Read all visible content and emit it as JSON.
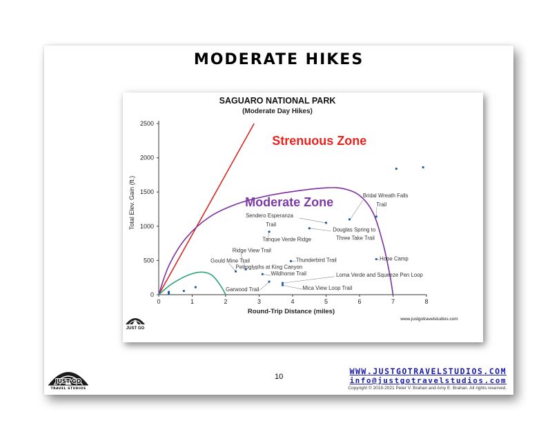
{
  "slide": {
    "title": "MODERATE HIKES",
    "page_number": "10"
  },
  "footer": {
    "website": "WWW.JUSTGOTRAVELSTUDIOS.COM",
    "email": "info@justgotravelstudios.com",
    "copyright": "Copyright © 2019-2021 Peter V. Brahan and Amy E. Brahan. All rights reserved.",
    "logo_text": "JUST GO",
    "logo_subtext": "TRAVEL STUDIOS"
  },
  "chart_data": {
    "type": "scatter",
    "title": "SAGUARO NATIONAL PARK",
    "subtitle": "(Moderate Day Hikes)",
    "xlabel": "Round-Trip Distance (miles)",
    "ylabel": "Total Elev. Gain (ft.)",
    "xlim": [
      0,
      8
    ],
    "ylim": [
      0,
      2500
    ],
    "x_ticks": [
      "0",
      "1",
      "2",
      "3",
      "4",
      "5",
      "6",
      "7",
      "8"
    ],
    "y_ticks": [
      "0",
      "500",
      "1000",
      "1500",
      "2000",
      "2500"
    ],
    "grid": false,
    "watermark": "www.justgotravelstudios.com",
    "zones": [
      {
        "label": "Strenuous Zone",
        "color": "#e8231d",
        "label_x": 4.8,
        "label_y": 2190
      },
      {
        "label": "Moderate Zone",
        "color": "#7b3aa6",
        "label_x": 3.9,
        "label_y": 1290
      }
    ],
    "strenuous_line": {
      "color": "#d9261f",
      "points": [
        [
          0,
          0
        ],
        [
          2.85,
          2500
        ]
      ]
    },
    "moderate_curve": {
      "color": "#7b2ea0",
      "points": [
        [
          0,
          0
        ],
        [
          0.3,
          420
        ],
        [
          0.8,
          820
        ],
        [
          1.5,
          1130
        ],
        [
          2.3,
          1320
        ],
        [
          3.2,
          1440
        ],
        [
          4.2,
          1520
        ],
        [
          5.0,
          1560
        ],
        [
          5.5,
          1550
        ],
        [
          6.0,
          1450
        ],
        [
          6.4,
          1200
        ],
        [
          6.7,
          750
        ],
        [
          6.9,
          300
        ],
        [
          7.0,
          0
        ]
      ]
    },
    "easy_curve": {
      "color": "#2aa37c",
      "points": [
        [
          0,
          0
        ],
        [
          0.4,
          160
        ],
        [
          0.9,
          290
        ],
        [
          1.3,
          330
        ],
        [
          1.6,
          280
        ],
        [
          1.85,
          130
        ],
        [
          2.0,
          0
        ]
      ]
    },
    "points_color": "#1f5aa6",
    "points": [
      {
        "x": 0.3,
        "y": 20,
        "label": ""
      },
      {
        "x": 0.3,
        "y": 40,
        "label": ""
      },
      {
        "x": 0.75,
        "y": 55,
        "label": ""
      },
      {
        "x": 1.1,
        "y": 110,
        "label": ""
      },
      {
        "x": 2.3,
        "y": 340,
        "label": "Gould Mine Trail",
        "lx": 1.55,
        "ly": 470,
        "anchor": "start"
      },
      {
        "x": 2.6,
        "y": 370,
        "label": "Ridge View Trail",
        "lx": 2.2,
        "ly": 620,
        "anchor": "start"
      },
      {
        "x": 3.1,
        "y": 300,
        "label": "Wildhorse Trail",
        "lx": 3.35,
        "ly": 280,
        "anchor": "start"
      },
      {
        "x": 3.3,
        "y": 190,
        "label": "Garwood Trail",
        "lx": 2.0,
        "ly": 50,
        "anchor": "start"
      },
      {
        "x": 3.3,
        "y": 920,
        "label": "Tanque Verde Ridge",
        "lx": 3.1,
        "ly": 780,
        "anchor": "start"
      },
      {
        "x": 3.7,
        "y": 140,
        "label": "Mica View Loop Trail",
        "lx": 4.3,
        "ly": 70,
        "anchor": "start"
      },
      {
        "x": 3.7,
        "y": 170,
        "label": "Loma Verde and Squeeze Pen Loop",
        "lx": 5.3,
        "ly": 260,
        "anchor": "start"
      },
      {
        "x": 3.95,
        "y": 490,
        "label": "Thunderbird Trail",
        "lx": 4.1,
        "ly": 480,
        "anchor": "start"
      },
      {
        "x": 4.5,
        "y": 970,
        "label": "Douglas Spring to",
        "lx": 5.2,
        "ly": 920,
        "anchor": "start"
      },
      {
        "x": 5.0,
        "y": 1050,
        "label": "Sendero Esperanza",
        "lx": 2.6,
        "ly": 1130,
        "anchor": "start"
      },
      {
        "x": 5.7,
        "y": 1100,
        "label": "Bridal Wreath Falls",
        "lx": 6.1,
        "ly": 1420,
        "anchor": "start"
      },
      {
        "x": 6.5,
        "y": 520,
        "label": "Hope Camp",
        "lx": 6.6,
        "ly": 500,
        "anchor": "start"
      },
      {
        "x": 6.5,
        "y": 1140,
        "label": "",
        "lx": 0,
        "ly": 0,
        "anchor": "start"
      },
      {
        "x": 7.1,
        "y": 1840,
        "label": "",
        "lx": 0,
        "ly": 0,
        "anchor": "start"
      },
      {
        "x": 7.9,
        "y": 1860,
        "label": "",
        "lx": 0,
        "ly": 0,
        "anchor": "start"
      }
    ],
    "extra_labels": [
      {
        "text": "Petroglyphs at King Canyon",
        "lx": 2.3,
        "ly": 380
      },
      {
        "text": "Trail",
        "lx": 3.2,
        "ly": 1000
      },
      {
        "text": "Three Take Trail",
        "lx": 5.3,
        "ly": 800
      },
      {
        "text": "Trail",
        "lx": 6.5,
        "ly": 1290
      }
    ],
    "leaders": [
      [
        [
          2.45,
          600
        ],
        [
          2.6,
          380
        ]
      ],
      [
        [
          2.1,
          455
        ],
        [
          2.3,
          345
        ]
      ],
      [
        [
          3.35,
          280
        ],
        [
          3.1,
          300
        ]
      ],
      [
        [
          3.0,
          60
        ],
        [
          3.3,
          185
        ]
      ],
      [
        [
          3.25,
          800
        ],
        [
          3.3,
          910
        ]
      ],
      [
        [
          4.3,
          80
        ],
        [
          3.72,
          135
        ]
      ],
      [
        [
          5.25,
          265
        ],
        [
          3.72,
          170
        ]
      ],
      [
        [
          4.1,
          490
        ],
        [
          3.97,
          490
        ]
      ],
      [
        [
          5.15,
          930
        ],
        [
          4.52,
          970
        ]
      ],
      [
        [
          4.2,
          1120
        ],
        [
          4.98,
          1050
        ]
      ],
      [
        [
          6.1,
          1380
        ],
        [
          5.72,
          1100
        ]
      ],
      [
        [
          6.6,
          510
        ],
        [
          6.52,
          520
        ]
      ],
      [
        [
          6.5,
          1280
        ],
        [
          6.5,
          1150
        ]
      ]
    ]
  }
}
